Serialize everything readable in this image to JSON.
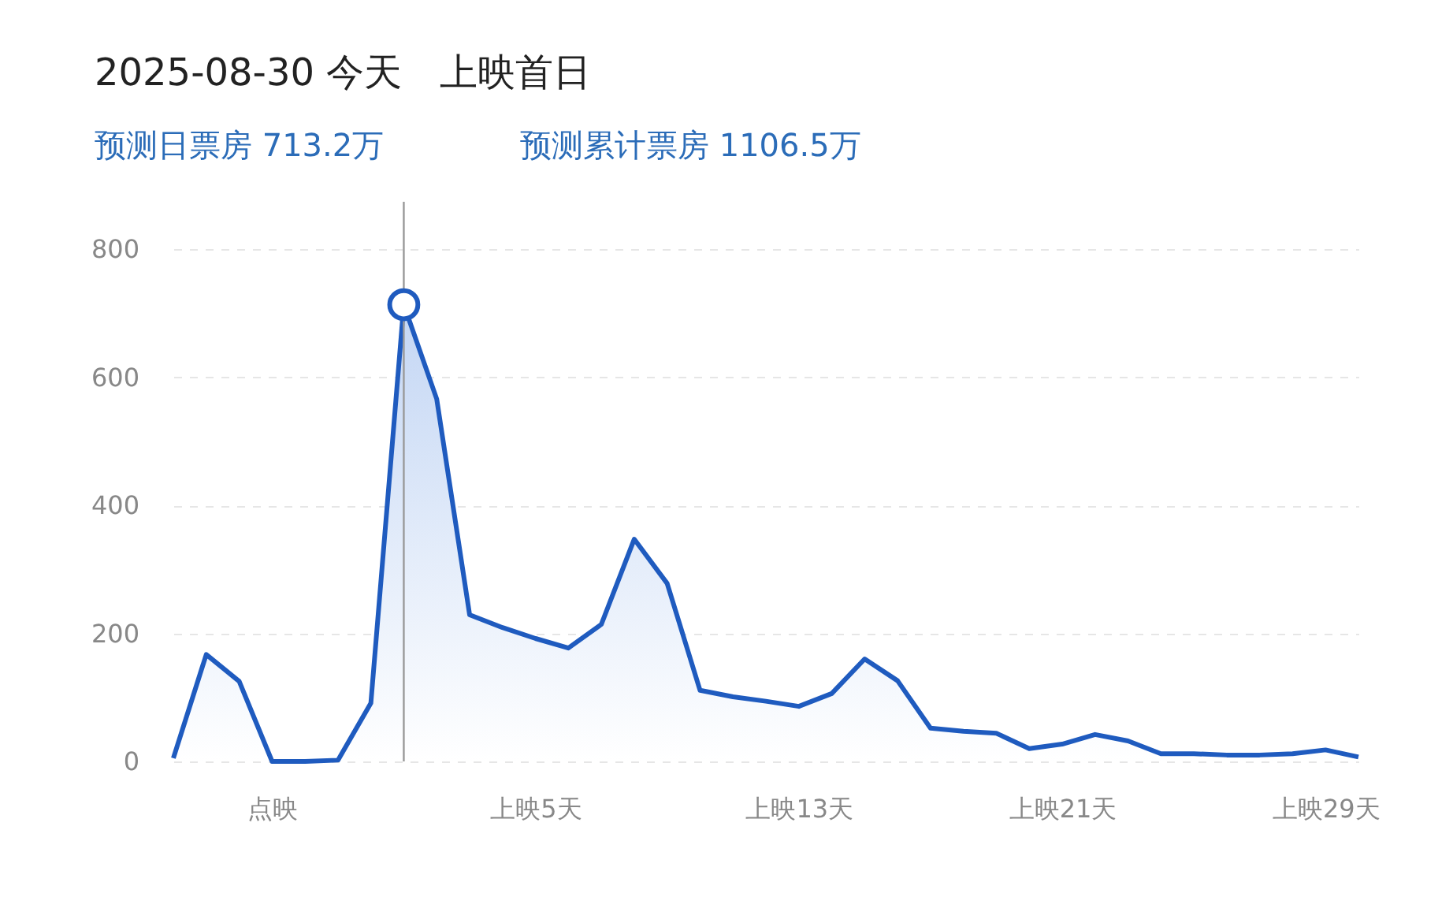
{
  "chart_data": {
    "type": "area",
    "title": "2025-08-30 今天　上映首日",
    "categories": [
      null,
      null,
      null,
      "点映",
      null,
      null,
      null,
      null,
      null,
      null,
      null,
      "上映5天",
      null,
      null,
      null,
      null,
      null,
      null,
      null,
      "上映13天",
      null,
      null,
      null,
      null,
      null,
      null,
      null,
      "上映21天",
      null,
      null,
      null,
      null,
      null,
      null,
      null,
      "上映29天",
      null
    ],
    "series": [
      {
        "color": "#1f5bbf",
        "values": [
          5,
          167,
          125,
          0,
          0,
          2,
          91,
          713.2,
          566,
          229,
          209,
          192,
          177,
          214,
          347,
          278,
          111,
          101,
          94,
          86,
          106,
          160,
          126,
          52,
          47,
          44,
          20,
          27,
          42,
          32,
          12,
          12,
          10,
          10,
          12,
          18,
          7
        ]
      }
    ],
    "ylim": [
      0,
      800
    ],
    "yticks": [
      0,
      200,
      400,
      600,
      800
    ],
    "grid": "y",
    "marker": "none",
    "line_style": "solid",
    "annotations": [
      "预测日票房 713.2万",
      "预测累计票房 1106.5万"
    ]
  }
}
